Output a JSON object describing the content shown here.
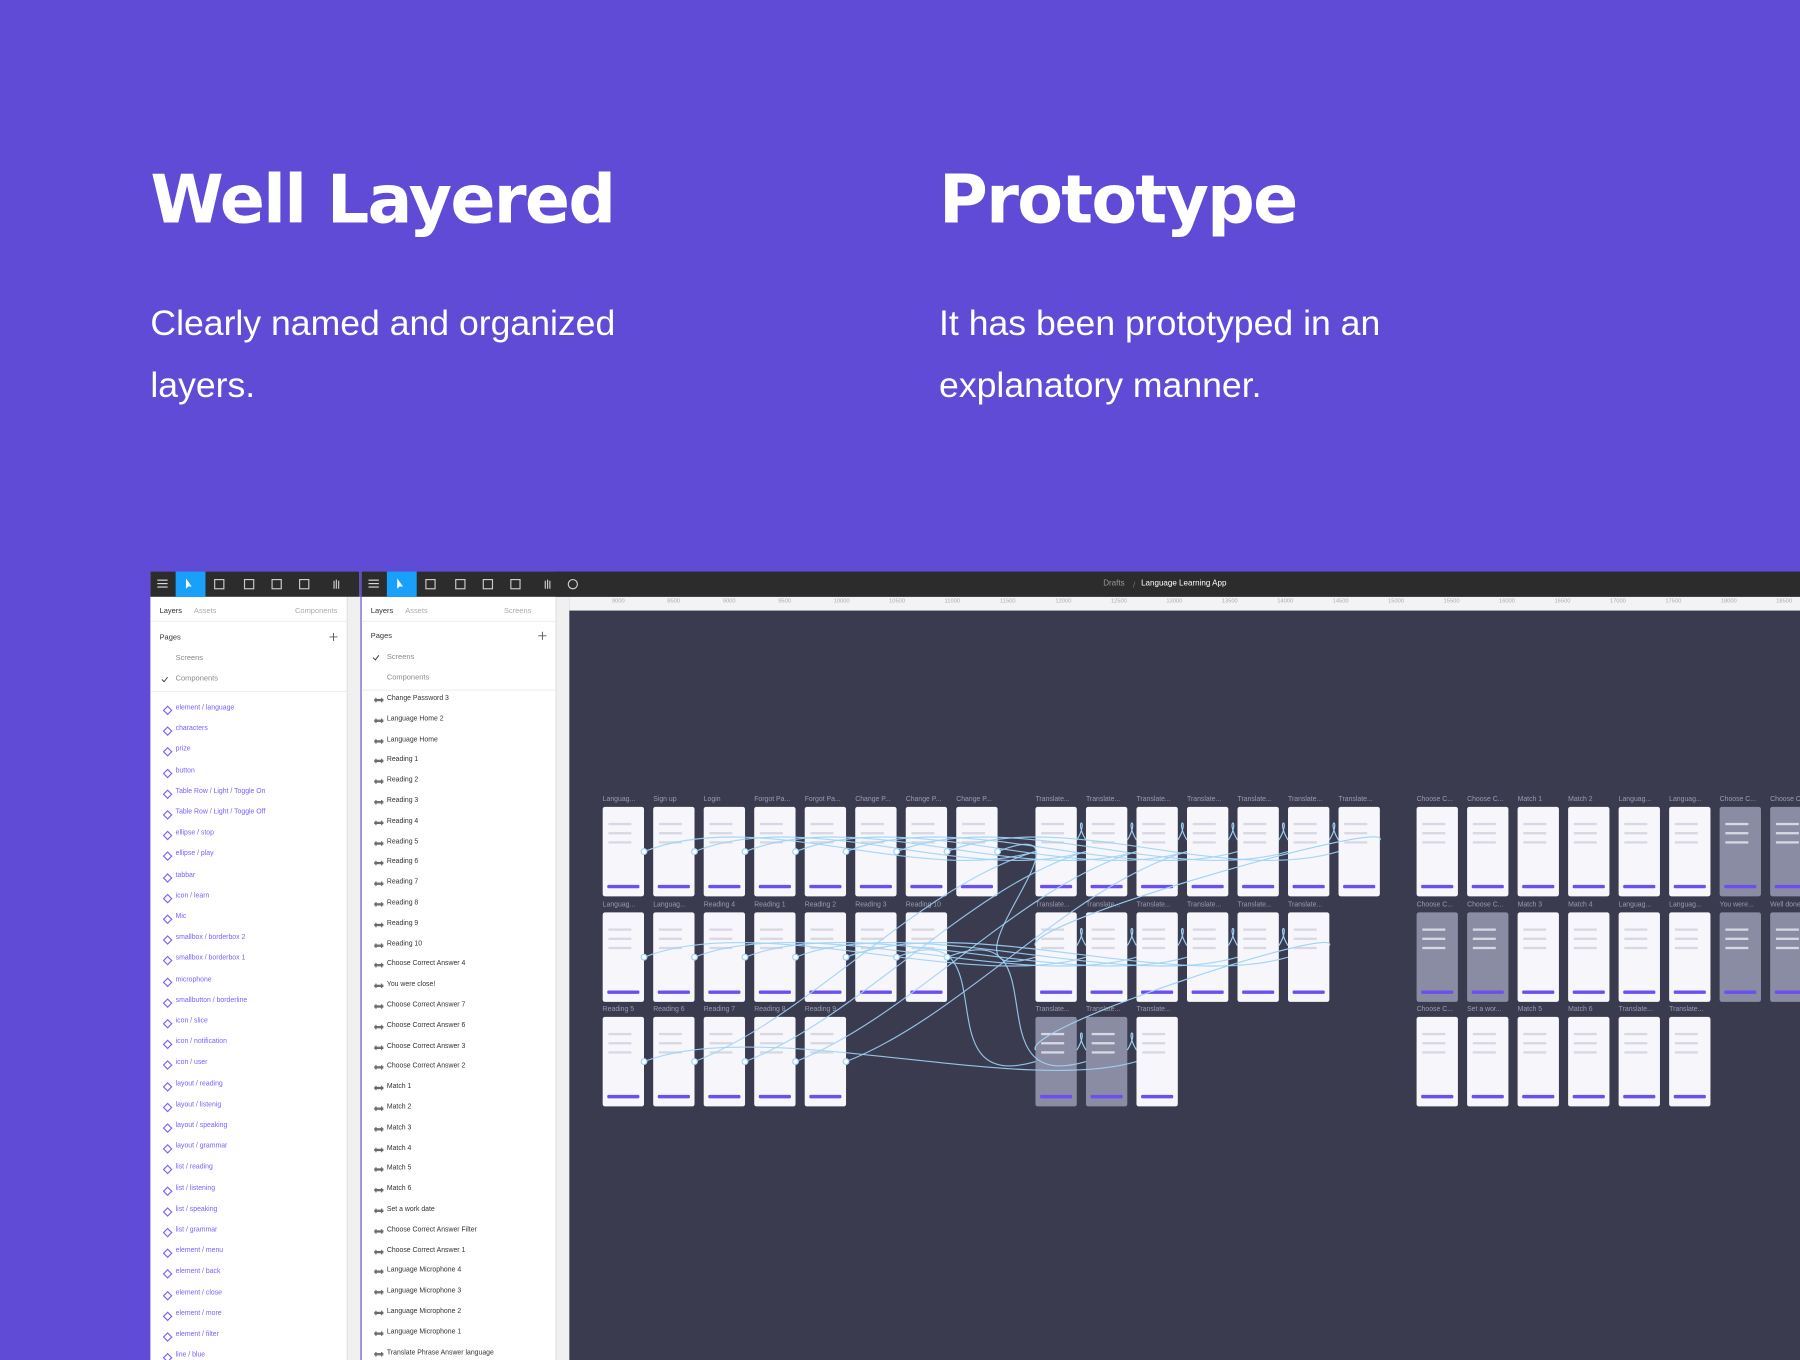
{
  "headings": [
    {
      "title": "Well Layered",
      "text": "Clearly named and organized layers."
    },
    {
      "title": "Prototype",
      "text": "It has been prototyped in an explanatory manner."
    }
  ],
  "layers_panel": {
    "tabs": [
      "Layers",
      "Assets"
    ],
    "dropdown": "Components",
    "pages_label": "Pages",
    "pages": [
      "Screens",
      "Components"
    ],
    "layers": [
      "element / language",
      "characters",
      "prize",
      "button",
      "Table Row / Light / Toggle On",
      "Table Row / Light / Toggle Off",
      "ellipse / stop",
      "ellipse / play",
      "tabbar",
      "icon / learn",
      "Mic",
      "smallbox / borderbox 2",
      "smallbox / borderbox 1",
      "microphone",
      "smallbutton / borderline",
      "icon / slice",
      "icon / notification",
      "icon / user",
      "layout / reading",
      "layout / listenig",
      "layout / speaking",
      "layout / grammar",
      "list / reading",
      "list / listening",
      "list / speaking",
      "list / grammar",
      "element / menu",
      "element / back",
      "element / close",
      "element / more",
      "element / filter",
      "line / blue"
    ]
  },
  "screens_panel": {
    "tabs": [
      "Layers",
      "Assets"
    ],
    "dropdown": "Screens",
    "pages_label": "Pages",
    "pages": [
      "Screens",
      "Components"
    ],
    "layers": [
      "Change Password 3",
      "Language Home 2",
      "Language Home",
      "Reading 1",
      "Reading 2",
      "Reading 3",
      "Reading 4",
      "Reading 5",
      "Reading 6",
      "Reading 7",
      "Reading 8",
      "Reading 9",
      "Reading 10",
      "Choose Correct Answer 4",
      "You were close!",
      "Choose Correct Answer 7",
      "Choose Correct Answer 6",
      "Choose Correct Answer 3",
      "Choose Correct Answer 2",
      "Match 1",
      "Match 2",
      "Match 3",
      "Match 4",
      "Match 5",
      "Match 6",
      "Set a work date",
      "Choose Correct Answer Filter",
      "Choose Correct Answer 1",
      "Language Microphone 4",
      "Language Microphone 3",
      "Language Microphone 2",
      "Language Microphone 1",
      "Translate Phrase Answer language"
    ]
  },
  "editor": {
    "breadcrumb": "Drafts",
    "file": "Language Learning App",
    "ruler": [
      "9000",
      "8500",
      "9000",
      "9500",
      "10000",
      "10500",
      "11000",
      "11500",
      "12000",
      "12500",
      "13000",
      "13500",
      "14000",
      "14500",
      "15000",
      "15500",
      "16000",
      "16500",
      "17000",
      "17500",
      "18000",
      "18500"
    ],
    "frame_groups": [
      [
        [
          "Languag...",
          "Sign up",
          "Login",
          "Forgot Pa...",
          "Forgot Pa...",
          "Change P...",
          "Change P...",
          "Change P..."
        ],
        [
          "Languag...",
          "Languag...",
          "Reading 4",
          "Reading 1",
          "Reading 2",
          "Reading 3",
          "Reading 10"
        ],
        [
          "Reading 5",
          "Reading 6",
          "Reading 7",
          "Reading 8",
          "Reading 9"
        ]
      ],
      [
        [
          "Translate...",
          "Translate...",
          "Translate...",
          "Translate...",
          "Translate...",
          "Translate...",
          "Translate..."
        ],
        [
          "Translate...",
          "Translate...",
          "Translate...",
          "Translate...",
          "Translate...",
          "Translate..."
        ],
        [
          "Translate...",
          "Translate...",
          "Translate..."
        ]
      ],
      [
        [
          "Choose C...",
          "Choose C...",
          "Match 1",
          "Match 2",
          "Languag...",
          "Languag...",
          "Choose C...",
          "Choose C"
        ],
        [
          "Choose C...",
          "Choose C...",
          "Match 3",
          "Match 4",
          "Languag...",
          "Languag...",
          "You were...",
          "Well done"
        ],
        [
          "Choose C...",
          "Set a wor...",
          "Match 5",
          "Match 6",
          "Translate...",
          "Translate..."
        ]
      ]
    ]
  }
}
